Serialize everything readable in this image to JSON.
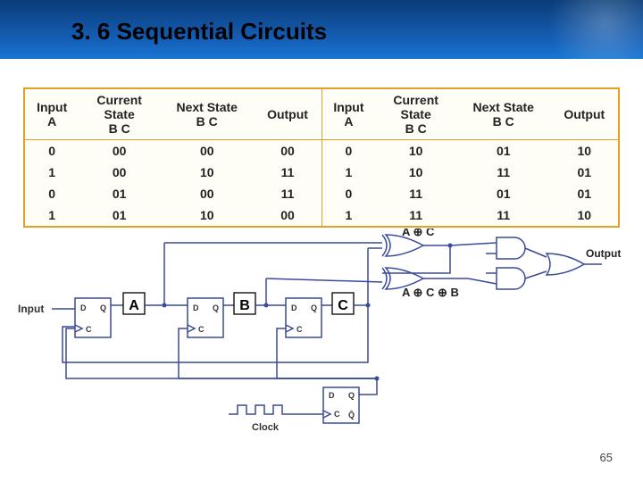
{
  "header": {
    "title": "3. 6 Sequential Circuits"
  },
  "table": {
    "border_color": "#e2a029",
    "bg_color": "#fffef6",
    "text_color": "#222222",
    "font_size_pt": 14,
    "columns_left": [
      "Input\nA",
      "Current\nState\nB C",
      "Next State\nB C",
      "Output"
    ],
    "columns_right": [
      "Input\nA",
      "Current\nState\nB C",
      "Next State\nB C",
      "Output"
    ],
    "rows_left": [
      [
        "0",
        "00",
        "00",
        "00"
      ],
      [
        "1",
        "00",
        "10",
        "11"
      ],
      [
        "0",
        "01",
        "00",
        "11"
      ],
      [
        "1",
        "01",
        "10",
        "00"
      ]
    ],
    "rows_right": [
      [
        "0",
        "10",
        "01",
        "10"
      ],
      [
        "1",
        "10",
        "11",
        "01"
      ],
      [
        "0",
        "11",
        "01",
        "01"
      ],
      [
        "1",
        "11",
        "11",
        "10"
      ]
    ]
  },
  "circuit": {
    "wire_color": "#3a4a9a",
    "box_fill": "#ffffff",
    "box_stroke": "#3a4a9a",
    "label_big_fill": "#ffffff",
    "label_big_stroke": "#000000",
    "text_color": "#333333",
    "labels": {
      "input": "Input",
      "A": "A",
      "B": "B",
      "C": "C",
      "D": "D",
      "Q": "Q",
      "Cport": "C",
      "Qbar": "Q̄",
      "xor1": "A ⊕ C",
      "xor2": "A ⊕ C ⊕ B",
      "output": "Output",
      "clock": "Clock"
    },
    "font": {
      "label_big_pt": 16,
      "port_pt": 9,
      "signal_pt": 12,
      "expr_pt": 13
    }
  },
  "page_number": "65",
  "colors": {
    "header_top": "#0a3c78",
    "header_bottom": "#1877d2"
  }
}
